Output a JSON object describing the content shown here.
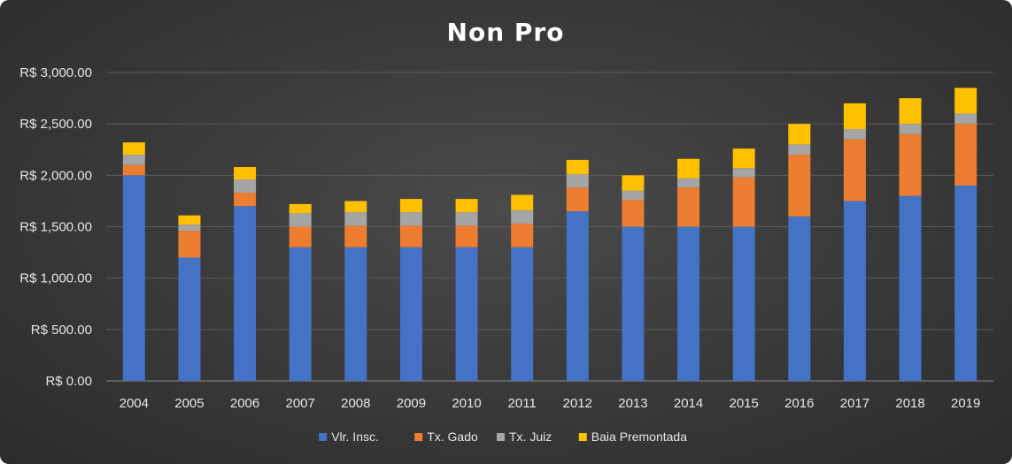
{
  "chart_data": {
    "type": "bar",
    "stacked": true,
    "title": "Non Pro",
    "xlabel": "",
    "ylabel": "",
    "categories": [
      "2004",
      "2005",
      "2006",
      "2007",
      "2008",
      "2009",
      "2010",
      "2011",
      "2012",
      "2013",
      "2014",
      "2015",
      "2016",
      "2017",
      "2018",
      "2019"
    ],
    "ylim": [
      0,
      3000
    ],
    "yticks": [
      0,
      500,
      1000,
      1500,
      2000,
      2500,
      3000
    ],
    "ytick_labels": [
      "R$ 0.00",
      "R$ 500.00",
      "R$ 1,000.00",
      "R$ 1,500.00",
      "R$ 2,000.00",
      "R$ 2,500.00",
      "R$ 3,000.00"
    ],
    "grid": true,
    "legend_position": "bottom",
    "series": [
      {
        "name": "Vlr. Insc.",
        "color": "#4472c4",
        "values": [
          2000,
          1200,
          1700,
          1300,
          1300,
          1300,
          1300,
          1300,
          1650,
          1500,
          1500,
          1500,
          1600,
          1750,
          1800,
          1900
        ]
      },
      {
        "name": "Tx. Gado",
        "color": "#ed7d31",
        "values": [
          100,
          260,
          130,
          200,
          210,
          210,
          210,
          230,
          230,
          260,
          380,
          480,
          600,
          600,
          600,
          600
        ]
      },
      {
        "name": "Tx. Juiz",
        "color": "#a5a5a5",
        "values": [
          100,
          60,
          130,
          130,
          130,
          130,
          130,
          130,
          130,
          90,
          90,
          90,
          100,
          100,
          100,
          100
        ]
      },
      {
        "name": "Baia Premontada",
        "color": "#ffc000",
        "values": [
          120,
          90,
          120,
          90,
          110,
          130,
          130,
          150,
          140,
          150,
          190,
          190,
          200,
          250,
          250,
          250
        ]
      }
    ]
  }
}
